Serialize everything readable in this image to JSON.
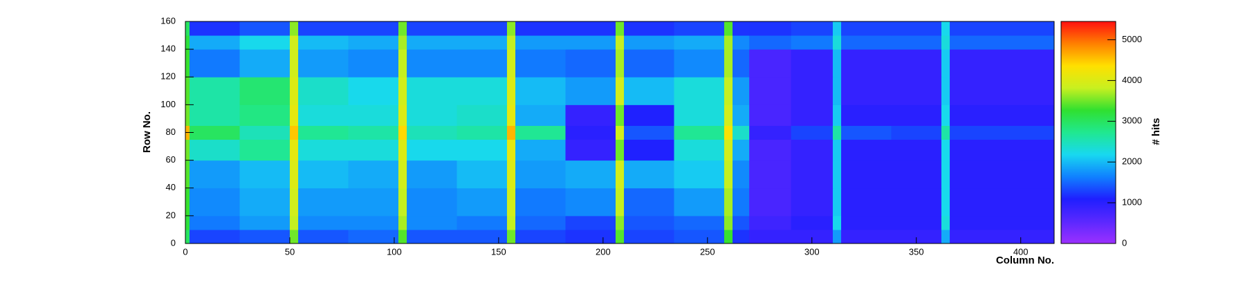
{
  "chart_data": {
    "type": "heatmap",
    "xlabel": "Column No.",
    "ylabel": "Row No.",
    "zlabel": "# hits",
    "xlim": [
      0,
      416
    ],
    "ylim": [
      0,
      160
    ],
    "zlim": [
      0,
      5450
    ],
    "xticks": [
      0,
      50,
      100,
      150,
      200,
      250,
      300,
      350,
      400
    ],
    "yticks": [
      0,
      20,
      40,
      60,
      80,
      100,
      120,
      140,
      160
    ],
    "zticks": [
      0,
      1000,
      2000,
      3000,
      4000,
      5000
    ],
    "colorscale": [
      "#9b30ff",
      "#5a28ff",
      "#1f1fff",
      "#1080ff",
      "#18d8f0",
      "#20e890",
      "#30e030",
      "#c8f020",
      "#ffe000",
      "#ff8000",
      "#ff1010"
    ],
    "xbins": [
      0,
      2,
      26,
      50,
      54,
      78,
      102,
      106,
      130,
      154,
      158,
      182,
      206,
      210,
      234,
      258,
      262,
      270,
      290,
      310,
      314,
      338,
      362,
      366,
      390,
      416
    ],
    "ybins": [
      0,
      10,
      20,
      40,
      60,
      75,
      85,
      100,
      120,
      140,
      150,
      160
    ],
    "z": [
      [
        3000,
        1300,
        1400,
        3500,
        1400,
        1500,
        3400,
        1400,
        1400,
        3500,
        1300,
        1200,
        3400,
        1300,
        1400,
        3300,
        1200,
        900,
        900,
        1800,
        900,
        900,
        1900,
        900,
        900
      ],
      [
        3200,
        1600,
        1800,
        3800,
        1700,
        1700,
        3700,
        1700,
        1600,
        3800,
        1500,
        1300,
        3600,
        1400,
        1500,
        3600,
        1400,
        800,
        1000,
        2200,
        1000,
        1000,
        2300,
        1000,
        1000
      ],
      [
        3300,
        1700,
        1900,
        3900,
        1800,
        1800,
        3800,
        1700,
        1800,
        3900,
        1600,
        1700,
        3800,
        1500,
        1800,
        3700,
        1600,
        700,
        900,
        2100,
        1000,
        1000,
        2200,
        1000,
        1000
      ],
      [
        3400,
        1800,
        2000,
        4000,
        2000,
        1900,
        3900,
        1800,
        2000,
        4000,
        1800,
        1900,
        3900,
        1900,
        2100,
        3800,
        1700,
        700,
        900,
        2100,
        1000,
        1000,
        2200,
        1000,
        1000
      ],
      [
        3500,
        2400,
        2700,
        4100,
        2300,
        2300,
        4000,
        2200,
        2200,
        4100,
        1900,
        900,
        3500,
        1100,
        2300,
        3900,
        1900,
        700,
        900,
        2100,
        1000,
        1000,
        2200,
        1000,
        1000
      ],
      [
        4600,
        3000,
        2500,
        4500,
        2700,
        2600,
        4400,
        2500,
        2600,
        4600,
        2700,
        1000,
        3900,
        1400,
        2700,
        4300,
        2400,
        900,
        1300,
        2600,
        1400,
        1300,
        2600,
        1300,
        1300
      ],
      [
        3500,
        2600,
        2800,
        4100,
        2300,
        2300,
        4000,
        2300,
        2400,
        4100,
        1900,
        900,
        3500,
        1100,
        2300,
        3900,
        1900,
        700,
        900,
        2100,
        1000,
        1000,
        2200,
        1000,
        1000
      ],
      [
        3400,
        2600,
        2900,
        4000,
        2400,
        2200,
        3900,
        2300,
        2300,
        4000,
        2000,
        1800,
        3900,
        2000,
        2300,
        3800,
        1800,
        700,
        900,
        2000,
        900,
        900,
        2100,
        900,
        900
      ],
      [
        3300,
        1600,
        1900,
        3900,
        1800,
        1700,
        3800,
        1700,
        1700,
        3900,
        1600,
        1500,
        3700,
        1500,
        1700,
        3700,
        1500,
        700,
        900,
        2000,
        900,
        900,
        2100,
        900,
        900
      ],
      [
        3200,
        1900,
        2200,
        3900,
        2000,
        1900,
        3700,
        1900,
        1900,
        3800,
        1800,
        1800,
        3800,
        1800,
        1900,
        3700,
        1700,
        1500,
        1600,
        2300,
        1500,
        1500,
        2300,
        1500,
        1500
      ],
      [
        3000,
        1200,
        1400,
        3600,
        1300,
        1300,
        3500,
        1300,
        1300,
        3600,
        1200,
        1200,
        3500,
        1200,
        1300,
        3400,
        1200,
        1200,
        1300,
        2100,
        1300,
        1300,
        2200,
        1300,
        1300
      ]
    ]
  }
}
